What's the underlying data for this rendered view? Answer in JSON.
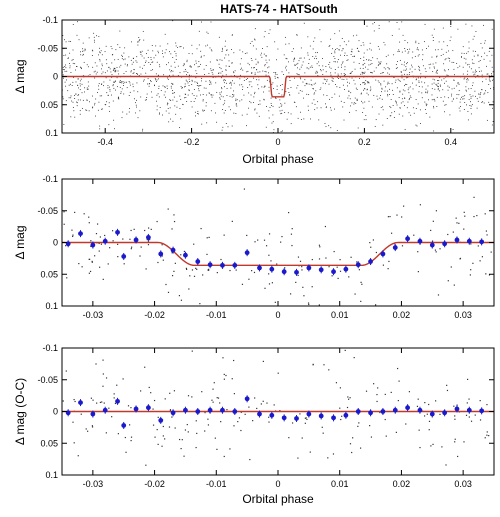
{
  "title": "HATS-74 - HATSouth",
  "colors": {
    "model": "#c0392b",
    "binned": "#1a1acc",
    "raw": "#333333",
    "frame": "#000000"
  },
  "chart_data": [
    {
      "type": "scatter",
      "name": "full",
      "xlabel": "Orbital phase",
      "ylabel": "Δ mag",
      "xlim": [
        -0.5,
        0.5
      ],
      "ylim": [
        0.1,
        -0.1
      ],
      "xticks": [
        -0.4,
        -0.2,
        0,
        0.2,
        0.4
      ],
      "xtick_labels": [
        "-0.4",
        "-0.2",
        "0",
        "0.2",
        "0.4"
      ],
      "yticks": [
        -0.1,
        -0.05,
        0,
        0.05,
        0.1
      ],
      "ytick_labels": [
        "-0.1",
        "-0.05",
        "0",
        "0.05",
        "0.1"
      ],
      "raw_points": 1800,
      "scatter_sigma": 0.04,
      "transit": {
        "depth": 0.036,
        "center": 0,
        "half_width": 0.0195,
        "ingress": 0.006
      },
      "binned": []
    },
    {
      "type": "scatter",
      "name": "zoom",
      "xlabel": "",
      "ylabel": "Δ mag",
      "xlim": [
        -0.035,
        0.035
      ],
      "ylim": [
        0.1,
        -0.1
      ],
      "xticks": [
        -0.03,
        -0.02,
        -0.01,
        0,
        0.01,
        0.02,
        0.03
      ],
      "xtick_labels": [
        "-0.03",
        "-0.02",
        "-0.01",
        "0",
        "0.01",
        "0.02",
        "0.03"
      ],
      "yticks": [
        -0.1,
        -0.05,
        0,
        0.05,
        0.1
      ],
      "ytick_labels": [
        "-0.1",
        "-0.05",
        "0",
        "0.05",
        "0.1"
      ],
      "raw_points": 230,
      "scatter_sigma": 0.04,
      "transit": {
        "depth": 0.036,
        "center": 0,
        "half_width": 0.0195,
        "ingress": 0.006
      },
      "binned": [
        [
          -0.034,
          0.002
        ],
        [
          -0.032,
          -0.014
        ],
        [
          -0.03,
          0.004
        ],
        [
          -0.028,
          -0.002
        ],
        [
          -0.026,
          -0.016
        ],
        [
          -0.025,
          0.022
        ],
        [
          -0.023,
          -0.004
        ],
        [
          -0.021,
          -0.008
        ],
        [
          -0.019,
          0.018
        ],
        [
          -0.017,
          0.012
        ],
        [
          -0.015,
          0.02
        ],
        [
          -0.013,
          0.03
        ],
        [
          -0.011,
          0.035
        ],
        [
          -0.009,
          0.036
        ],
        [
          -0.007,
          0.036
        ],
        [
          -0.005,
          0.016
        ],
        [
          -0.003,
          0.04
        ],
        [
          -0.001,
          0.042
        ],
        [
          0.001,
          0.046
        ],
        [
          0.003,
          0.047
        ],
        [
          0.005,
          0.04
        ],
        [
          0.007,
          0.043
        ],
        [
          0.009,
          0.046
        ],
        [
          0.011,
          0.042
        ],
        [
          0.013,
          0.035
        ],
        [
          0.015,
          0.03
        ],
        [
          0.017,
          0.018
        ],
        [
          0.019,
          0.008
        ],
        [
          0.021,
          -0.006
        ],
        [
          0.023,
          -0.002
        ],
        [
          0.025,
          0.004
        ],
        [
          0.027,
          0.002
        ],
        [
          0.029,
          -0.004
        ],
        [
          0.031,
          -0.002
        ],
        [
          0.033,
          -0.001
        ]
      ]
    },
    {
      "type": "scatter",
      "name": "residuals",
      "xlabel": "Orbital phase",
      "ylabel": "Δ mag (O-C)",
      "xlim": [
        -0.035,
        0.035
      ],
      "ylim": [
        0.1,
        -0.1
      ],
      "xticks": [
        -0.03,
        -0.02,
        -0.01,
        0,
        0.01,
        0.02,
        0.03
      ],
      "xtick_labels": [
        "-0.03",
        "-0.02",
        "-0.01",
        "0",
        "0.01",
        "0.02",
        "0.03"
      ],
      "yticks": [
        -0.1,
        -0.05,
        0,
        0.05,
        0.1
      ],
      "ytick_labels": [
        "-0.1",
        "-0.05",
        "0",
        "0.05",
        "0.1"
      ],
      "raw_points": 230,
      "scatter_sigma": 0.04,
      "transit": null,
      "binned": [
        [
          -0.034,
          0.002
        ],
        [
          -0.032,
          -0.014
        ],
        [
          -0.03,
          0.004
        ],
        [
          -0.028,
          -0.002
        ],
        [
          -0.026,
          -0.016
        ],
        [
          -0.025,
          0.022
        ],
        [
          -0.023,
          -0.004
        ],
        [
          -0.021,
          -0.006
        ],
        [
          -0.019,
          0.014
        ],
        [
          -0.017,
          0.002
        ],
        [
          -0.015,
          -0.002
        ],
        [
          -0.013,
          0.0
        ],
        [
          -0.011,
          -0.002
        ],
        [
          -0.009,
          -0.002
        ],
        [
          -0.007,
          0.0
        ],
        [
          -0.005,
          -0.02
        ],
        [
          -0.003,
          0.004
        ],
        [
          -0.001,
          0.006
        ],
        [
          0.001,
          0.01
        ],
        [
          0.003,
          0.011
        ],
        [
          0.005,
          0.004
        ],
        [
          0.007,
          0.007
        ],
        [
          0.009,
          0.01
        ],
        [
          0.011,
          0.006
        ],
        [
          0.013,
          0.0
        ],
        [
          0.015,
          0.002
        ],
        [
          0.017,
          0.0
        ],
        [
          0.019,
          -0.002
        ],
        [
          0.021,
          -0.006
        ],
        [
          0.023,
          -0.002
        ],
        [
          0.025,
          0.004
        ],
        [
          0.027,
          0.002
        ],
        [
          0.029,
          -0.004
        ],
        [
          0.031,
          -0.002
        ],
        [
          0.033,
          -0.001
        ]
      ]
    }
  ]
}
